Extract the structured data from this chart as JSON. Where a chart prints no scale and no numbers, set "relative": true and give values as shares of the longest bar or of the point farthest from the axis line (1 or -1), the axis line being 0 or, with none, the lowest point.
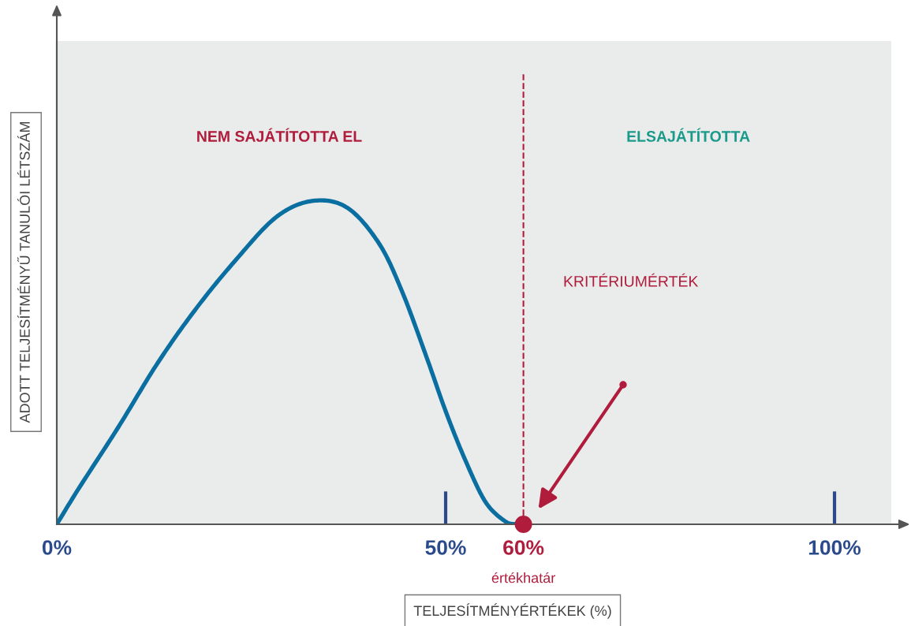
{
  "chart_data": {
    "type": "line",
    "relative": true,
    "xlabel": "TELJESÍTMÉNYÉRTÉKEK (%)",
    "ylabel": "ADOTT TELJESÍTMÉNYŰ TANULÓI LÉTSZÁM",
    "xlim": [
      0,
      107.3
    ],
    "xticks": [
      {
        "value": 0,
        "label": "0%"
      },
      {
        "value": 50,
        "label": "50%"
      },
      {
        "value": 60,
        "label": "60%"
      },
      {
        "value": 100,
        "label": "100%"
      }
    ],
    "series": [
      {
        "color": "#0a6fa0",
        "x": [
          0,
          2.8,
          7.9,
          13,
          18,
          23.1,
          28.2,
          32.8,
          37.3,
          41.4,
          44.4,
          47.5,
          50,
          52.5,
          55.1,
          57.6,
          59.1
        ],
        "values": [
          0,
          0.11,
          0.3,
          0.5,
          0.67,
          0.82,
          0.95,
          1,
          0.98,
          0.87,
          0.72,
          0.52,
          0.35,
          0.2,
          0.07,
          0.01,
          0
        ]
      },
      {
        "type": "scatter",
        "color": "#b01c3c",
        "marker": "circle",
        "x": [
          60
        ],
        "values": [
          0
        ]
      }
    ],
    "ref_lines": [
      {
        "axis": "x",
        "value": 60,
        "label": "értékhatár",
        "color": "#b01c3c",
        "line_style": "dashed"
      }
    ],
    "annotations": [
      "NEM SAJÁTÍTOTTA EL",
      "ELSAJÁTÍTOTTA",
      "KRITÉRIUMÉRTÉK"
    ],
    "grid": false,
    "legend": false
  }
}
